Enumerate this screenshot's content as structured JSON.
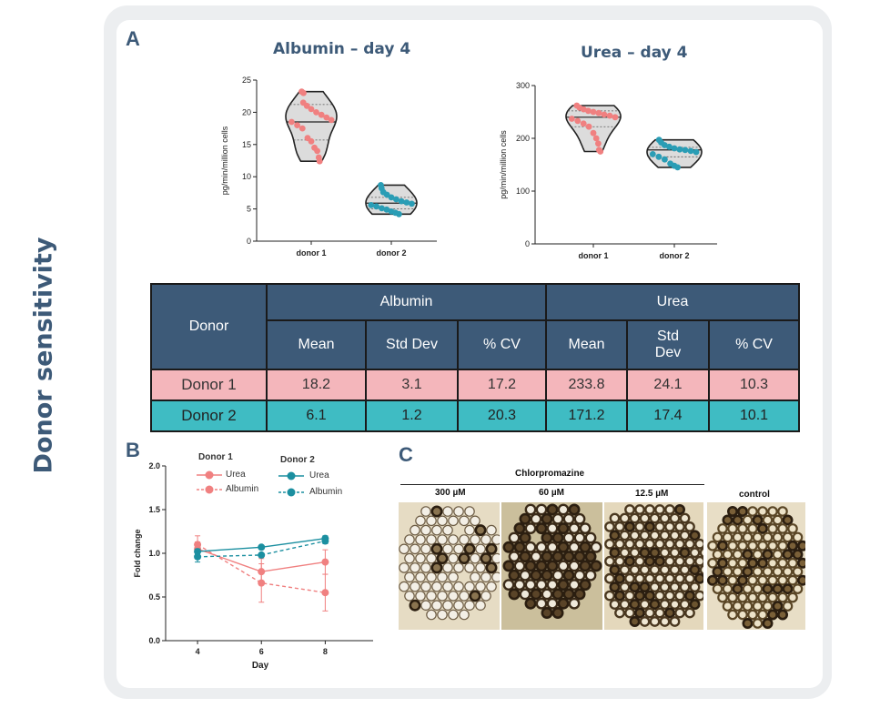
{
  "side_title": "Donor sensitivity",
  "panel_labels": {
    "a": "A",
    "b": "B",
    "c": "C"
  },
  "table": {
    "donor_header": "Donor",
    "group_headers": [
      "Albumin",
      "Urea"
    ],
    "sub_headers": [
      "Mean",
      "Std Dev",
      "% CV",
      "Mean",
      "Std Dev",
      "% CV"
    ],
    "rows": [
      {
        "donor": "Donor 1",
        "values": [
          "18.2",
          "3.1",
          "17.2",
          "233.8",
          "24.1",
          "10.3"
        ]
      },
      {
        "donor": "Donor 2",
        "values": [
          "6.1",
          "1.2",
          "20.3",
          "171.2",
          "17.4",
          "10.1"
        ]
      }
    ]
  },
  "panel_c": {
    "header": "Chlorpromazine",
    "labels": [
      "300 µM",
      "60 µM",
      "12.5 µM",
      "control"
    ]
  },
  "chart_data": [
    {
      "type": "violin",
      "title": "Albumin – day 4",
      "ylabel": "pg/min/million cells",
      "categories": [
        "donor 1",
        "donor 2"
      ],
      "ylim": [
        0,
        25
      ],
      "yticks": [
        0,
        5,
        10,
        15,
        20,
        25
      ],
      "series": [
        {
          "name": "donor 1",
          "color": "#f08080",
          "median": 18.5,
          "quartiles": [
            15.7,
            21.2
          ],
          "points": [
            23.2,
            23.0,
            21.5,
            21.0,
            20.5,
            20.0,
            19.6,
            19.2,
            18.8,
            18.5,
            18.0,
            17.5,
            16.0,
            15.5,
            14.5,
            14.0,
            13.0,
            12.4
          ]
        },
        {
          "name": "donor 2",
          "color": "#2a9db5",
          "median": 5.9,
          "quartiles": [
            5.0,
            6.8
          ],
          "points": [
            8.7,
            8.2,
            7.6,
            7.2,
            6.8,
            6.5,
            6.2,
            6.0,
            5.8,
            5.6,
            5.4,
            5.1,
            4.9,
            4.6,
            4.4,
            4.2
          ]
        }
      ]
    },
    {
      "type": "violin",
      "title": "Urea – day 4",
      "ylabel": "pg/min/million cells",
      "categories": [
        "donor 1",
        "donor 2"
      ],
      "ylim": [
        0,
        300
      ],
      "yticks": [
        0,
        100,
        200,
        300
      ],
      "series": [
        {
          "name": "donor 1",
          "color": "#f08080",
          "median": 240,
          "quartiles": [
            222,
            252
          ],
          "points": [
            262,
            258,
            255,
            252,
            250,
            248,
            245,
            243,
            240,
            237,
            233,
            228,
            222,
            210,
            200,
            190,
            178,
            175
          ]
        },
        {
          "name": "donor 2",
          "color": "#2a9db5",
          "median": 178,
          "quartiles": [
            165,
            183
          ],
          "points": [
            197,
            192,
            187,
            184,
            181,
            179,
            178,
            176,
            174,
            170,
            165,
            160,
            152,
            148,
            145
          ]
        }
      ]
    },
    {
      "type": "line",
      "xlabel": "Day",
      "ylabel": "Fold change",
      "x": [
        4,
        6,
        8
      ],
      "xlim": [
        3,
        9.5
      ],
      "ylim": [
        0,
        2
      ],
      "yticks": [
        "0.0",
        "0.5",
        "1.0",
        "1.5",
        "2.0"
      ],
      "legend_groups": [
        "Donor 1",
        "Donor 2"
      ],
      "series": [
        {
          "name": "Urea",
          "group": "Donor 1",
          "color": "#f08080",
          "dashed": false,
          "values": [
            1.05,
            0.79,
            0.9
          ],
          "errors": [
            0.08,
            0.15,
            0.14
          ]
        },
        {
          "name": "Albumin",
          "group": "Donor 1",
          "color": "#f08080",
          "dashed": true,
          "values": [
            1.1,
            0.66,
            0.55
          ],
          "errors": [
            0.1,
            0.22,
            0.21
          ]
        },
        {
          "name": "Urea",
          "group": "Donor 2",
          "color": "#1b8fa0",
          "dashed": false,
          "values": [
            1.02,
            1.07,
            1.17
          ],
          "errors": [
            0.03,
            0.02,
            0.03
          ]
        },
        {
          "name": "Albumin",
          "group": "Donor 2",
          "color": "#1b8fa0",
          "dashed": true,
          "values": [
            0.96,
            0.98,
            1.14
          ],
          "errors": [
            0.06,
            0.02,
            0.03
          ]
        }
      ]
    }
  ]
}
